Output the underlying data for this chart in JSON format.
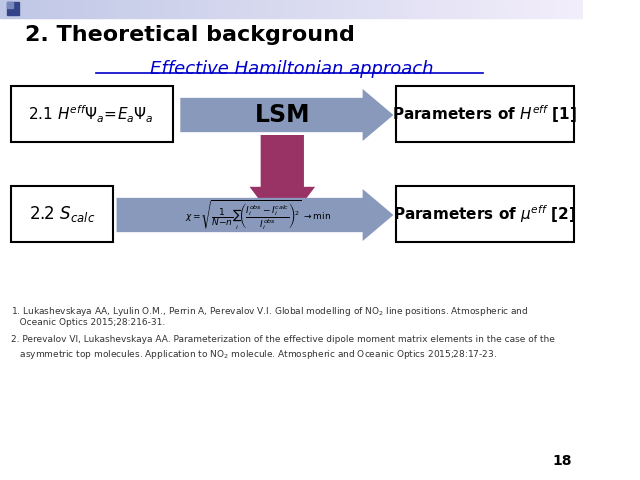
{
  "title": "2. Theoretical background",
  "subtitle": "Effective Hamiltonian approach",
  "bg_color": "#ffffff",
  "title_color": "#000000",
  "subtitle_color": "#0000cc",
  "slide_number": "18",
  "arrow_blue": "#8899bb",
  "arrow_purple": "#993366",
  "ref1": "1. Lukashevskaya AA, Lyulin O.M., Perrin A, Perevalov V.I. Global modelling of NO$_2$ line positions. Atmospheric and",
  "ref1b": "   Oceanic Optics 2015;28:216-31.",
  "ref2": "2. Perevalov VI, Lukashevskaya AA. Parameterization of the effective dipole moment matrix elements in the case of the",
  "ref2b": "   asymmetric top molecules. Application to NO$_2$ molecule. Atmospheric and Oceanic Optics 2015;28:17-23."
}
